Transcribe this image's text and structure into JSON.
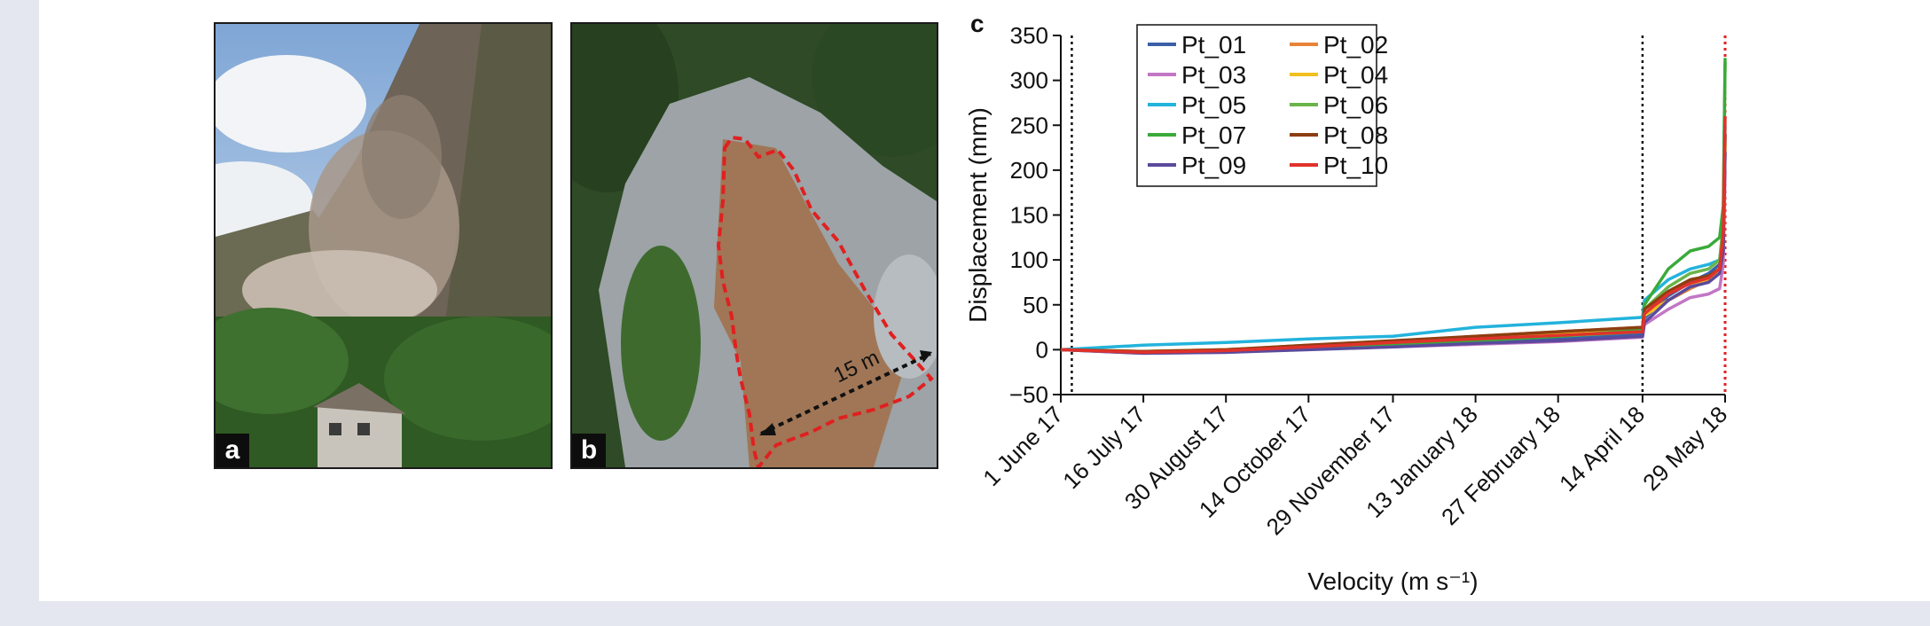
{
  "panels": {
    "a": {
      "label": "a"
    },
    "b": {
      "label": "b",
      "scale_text": "15 m"
    },
    "c": {
      "label": "c"
    }
  },
  "colors": {
    "background": "#e4e6f0",
    "outline_red": "#e02020"
  },
  "chart_data": {
    "type": "line",
    "xlabel": "Velocity (m s⁻¹)",
    "ylabel": "Displacement (mm)",
    "ylim": [
      -50,
      350
    ],
    "yticks": [
      -50,
      0,
      50,
      100,
      150,
      200,
      250,
      300,
      350
    ],
    "xlim": [
      "2017-06-01",
      "2018-05-29"
    ],
    "xticks": [
      {
        "date": "2017-06-01",
        "label": "1 June 17"
      },
      {
        "date": "2017-07-16",
        "label": "16 July 17"
      },
      {
        "date": "2017-08-30",
        "label": "30 August 17"
      },
      {
        "date": "2017-10-14",
        "label": "14 October 17"
      },
      {
        "date": "2017-11-29",
        "label": "29 November 17"
      },
      {
        "date": "2018-01-13",
        "label": "13 January 18"
      },
      {
        "date": "2018-02-27",
        "label": "27 February 18"
      },
      {
        "date": "2018-04-14",
        "label": "14 April 18"
      },
      {
        "date": "2018-05-29",
        "label": "29 May 18"
      }
    ],
    "vlines": [
      {
        "date": "2017-06-07",
        "style": "black-dotted"
      },
      {
        "date": "2018-04-14",
        "style": "black-dotted"
      },
      {
        "date": "2018-05-29",
        "style": "red-dotted"
      }
    ],
    "grid": false,
    "legend": {
      "position": "top-left",
      "columns": 2
    },
    "x": [
      "2017-06-01",
      "2017-07-16",
      "2017-08-30",
      "2017-10-14",
      "2017-11-29",
      "2018-01-13",
      "2018-02-27",
      "2018-04-14",
      "2018-04-15",
      "2018-04-28",
      "2018-05-10",
      "2018-05-20",
      "2018-05-26",
      "2018-05-28",
      "2018-05-29"
    ],
    "series": [
      {
        "name": "Pt_01",
        "color": "#3a5fa8",
        "values": [
          0,
          -3,
          -2,
          2,
          5,
          8,
          12,
          18,
          35,
          60,
          75,
          85,
          95,
          120,
          240
        ]
      },
      {
        "name": "Pt_02",
        "color": "#e8843a",
        "values": [
          0,
          -2,
          0,
          5,
          8,
          15,
          20,
          25,
          40,
          55,
          68,
          78,
          85,
          110,
          220
        ]
      },
      {
        "name": "Pt_03",
        "color": "#c276c5",
        "values": [
          0,
          -4,
          -3,
          1,
          3,
          6,
          9,
          14,
          28,
          45,
          58,
          62,
          68,
          95,
          200
        ]
      },
      {
        "name": "Pt_04",
        "color": "#f2c01e",
        "values": [
          0,
          -2,
          0,
          4,
          8,
          12,
          18,
          22,
          38,
          55,
          70,
          80,
          85,
          115,
          230
        ]
      },
      {
        "name": "Pt_05",
        "color": "#23b3dc",
        "values": [
          0,
          5,
          8,
          12,
          15,
          25,
          30,
          36,
          55,
          78,
          90,
          95,
          100,
          130,
          250
        ]
      },
      {
        "name": "Pt_06",
        "color": "#6ab44a",
        "values": [
          0,
          -3,
          -1,
          3,
          6,
          10,
          15,
          20,
          45,
          70,
          85,
          90,
          100,
          140,
          320
        ]
      },
      {
        "name": "Pt_07",
        "color": "#3aaa3a",
        "values": [
          0,
          -3,
          -1,
          3,
          6,
          10,
          15,
          22,
          50,
          90,
          110,
          115,
          125,
          160,
          325
        ]
      },
      {
        "name": "Pt_08",
        "color": "#8c3e10",
        "values": [
          0,
          -2,
          0,
          5,
          10,
          15,
          20,
          25,
          45,
          65,
          78,
          82,
          90,
          120,
          240
        ]
      },
      {
        "name": "Pt_09",
        "color": "#5a4a9c",
        "values": [
          0,
          -4,
          -3,
          0,
          3,
          7,
          10,
          15,
          30,
          55,
          70,
          75,
          85,
          110,
          220
        ]
      },
      {
        "name": "Pt_10",
        "color": "#e0322b",
        "values": [
          0,
          -3,
          -1,
          3,
          8,
          12,
          16,
          20,
          40,
          62,
          74,
          80,
          90,
          130,
          260
        ]
      }
    ]
  }
}
